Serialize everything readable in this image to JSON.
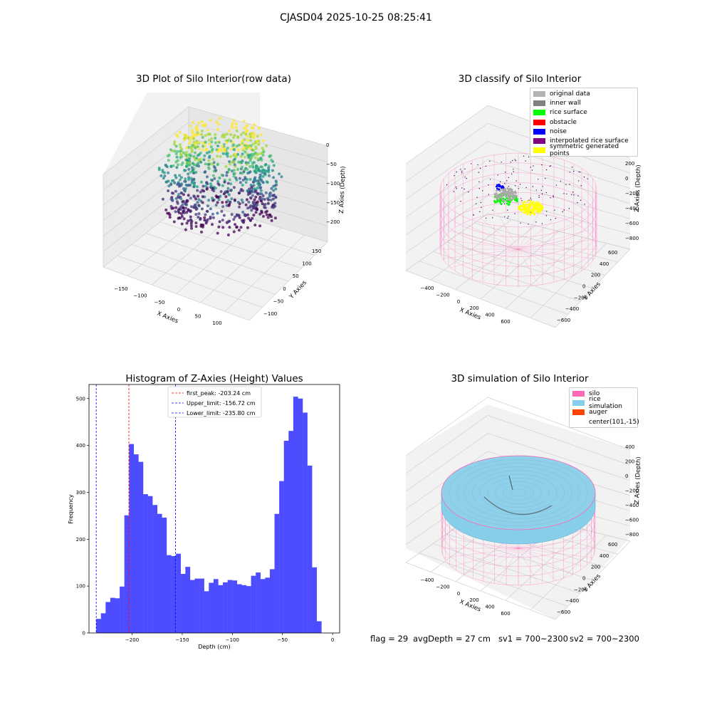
{
  "suptitle": "CJASD04 2025-10-25 08:25:41",
  "panels": {
    "raw": {
      "title": "3D Plot of Silo Interior(row data)",
      "xlabel": "X Axies",
      "ylabel": "Y Axies",
      "zlabel": "Z Axies (Depth)",
      "xticks": [
        "-150",
        "-100",
        "-50",
        "0",
        "50",
        "100"
      ],
      "yticks": [
        "-100",
        "-50",
        "0",
        "50",
        "100",
        "150"
      ],
      "zticks": [
        "0",
        "-50",
        "-100",
        "-150",
        "-200"
      ]
    },
    "classify": {
      "title": "3D classify of Silo Interior",
      "xlabel": "X Axies",
      "ylabel": "Y Axies",
      "zlabel": "Z Axies (Depth)",
      "xticks": [
        "-400",
        "-200",
        "0",
        "200",
        "400",
        "600"
      ],
      "yticks": [
        "-600",
        "-400",
        "-200",
        "0",
        "200",
        "400",
        "600"
      ],
      "zticks": [
        "200",
        "0",
        "-200",
        "-400",
        "-600",
        "-800"
      ],
      "legend": [
        {
          "label": "original data",
          "color": "#b3b3b3"
        },
        {
          "label": "inner wall",
          "color": "#808080"
        },
        {
          "label": "rice surface",
          "color": "#00ff00"
        },
        {
          "label": "obstacle",
          "color": "#ff0000"
        },
        {
          "label": "noise",
          "color": "#0000ff"
        },
        {
          "label": "interpolated rice surface",
          "color": "#800080"
        },
        {
          "label": "symmetric generated points",
          "color": "#ffff00"
        }
      ]
    },
    "simulation": {
      "title": "3D simulation of Silo Interior",
      "xlabel": "X Axies",
      "ylabel": "Y Axies",
      "zlabel": "Z Axies (Depth)",
      "xticks": [
        "-400",
        "-200",
        "0",
        "200",
        "400",
        "600"
      ],
      "yticks": [
        "-600",
        "-400",
        "-200",
        "0",
        "200",
        "400",
        "600"
      ],
      "zticks": [
        "400",
        "200",
        "0",
        "-200",
        "-400",
        "-600",
        "-800"
      ],
      "legend": [
        {
          "label": "silo",
          "color": "#ff69b4"
        },
        {
          "label": "rice simulation",
          "color": "#87ceeb"
        },
        {
          "label": "auger",
          "color": "#ff4500"
        },
        {
          "label": "center(101,-15)",
          "color": ""
        }
      ]
    }
  },
  "chart_data": {
    "type": "bar",
    "title": "Histogram of Z-Axies (Height) Values",
    "xlabel": "Depth (cm)",
    "ylabel": "Frequency",
    "xlim": [
      -243,
      7
    ],
    "ylim": [
      0,
      530
    ],
    "xticks": [
      -200,
      -150,
      -100,
      -50,
      0
    ],
    "yticks": [
      0,
      100,
      200,
      300,
      400,
      500
    ],
    "bar_color": "#4d4dff",
    "bin_start": -235.8,
    "bin_width": 4.68,
    "values": [
      30,
      42,
      66,
      75,
      74,
      99,
      251,
      403,
      381,
      365,
      296,
      292,
      273,
      254,
      246,
      166,
      164,
      169,
      126,
      141,
      113,
      116,
      116,
      89,
      107,
      115,
      102,
      108,
      113,
      112,
      104,
      102,
      100,
      122,
      129,
      115,
      118,
      136,
      254,
      324,
      410,
      431,
      504,
      500,
      470,
      357,
      140,
      25
    ],
    "lines": [
      {
        "label": "first_peak: -203.24 cm",
        "x": -203.24,
        "color": "#ff0000"
      },
      {
        "label": "Upper_limit: -156.72 cm",
        "x": -156.72,
        "color": "#0000ff"
      },
      {
        "label": "Lower_limit: -235.80 cm",
        "x": -235.8,
        "color": "#0000ff"
      }
    ]
  },
  "footer": {
    "flag": "flag = 29",
    "avg": "avgDepth = 27 cm",
    "sv1": "sv1 = 700~2300",
    "sv2": "sv2 = 700~2300"
  }
}
